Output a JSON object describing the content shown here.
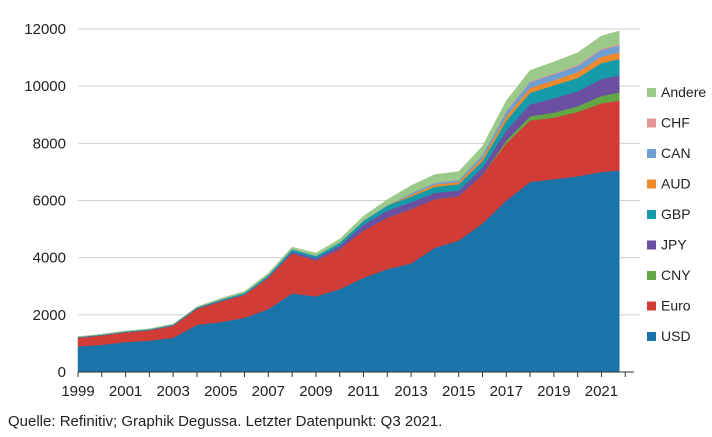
{
  "chart_data": {
    "type": "area",
    "stacked": true,
    "x": [
      1999,
      2000,
      2001,
      2002,
      2003,
      2004,
      2005,
      2006,
      2007,
      2008,
      2009,
      2010,
      2011,
      2012,
      2013,
      2014,
      2015,
      2016,
      2017,
      2018,
      2019,
      2020,
      2021,
      2021.75
    ],
    "x_ticks": [
      1999,
      2001,
      2003,
      2005,
      2007,
      2009,
      2011,
      2013,
      2015,
      2017,
      2019,
      2021
    ],
    "ylim": [
      0,
      12000
    ],
    "y_ticks": [
      0,
      2000,
      4000,
      6000,
      8000,
      10000,
      12000
    ],
    "grid": "horizontal",
    "legend_position": "right",
    "series": [
      {
        "name": "USD",
        "color": "#1a74a8",
        "values": [
          900,
          950,
          1050,
          1100,
          1200,
          1650,
          1750,
          1900,
          2200,
          2750,
          2650,
          2900,
          3300,
          3600,
          3800,
          4350,
          4600,
          5200,
          6000,
          6650,
          6750,
          6850,
          7000,
          7050
        ]
      },
      {
        "name": "Euro",
        "color": "#d23c36",
        "values": [
          300,
          330,
          340,
          360,
          420,
          560,
          720,
          800,
          1100,
          1400,
          1250,
          1400,
          1650,
          1800,
          1900,
          1700,
          1550,
          1700,
          2000,
          2150,
          2150,
          2250,
          2400,
          2450
        ]
      },
      {
        "name": "CNY",
        "color": "#62a744",
        "values": [
          0,
          0,
          0,
          0,
          0,
          0,
          0,
          0,
          0,
          0,
          0,
          0,
          0,
          0,
          0,
          0,
          0,
          0,
          100,
          150,
          180,
          200,
          260,
          280
        ]
      },
      {
        "name": "JPY",
        "color": "#6b4fa0",
        "values": [
          10,
          12,
          12,
          15,
          15,
          20,
          20,
          20,
          25,
          60,
          80,
          120,
          200,
          250,
          240,
          220,
          200,
          250,
          350,
          420,
          500,
          520,
          590,
          600
        ]
      },
      {
        "name": "GBP",
        "color": "#159aaa",
        "values": [
          20,
          22,
          22,
          25,
          30,
          35,
          45,
          55,
          70,
          90,
          90,
          110,
          150,
          180,
          200,
          210,
          220,
          230,
          350,
          400,
          450,
          470,
          560,
          570
        ]
      },
      {
        "name": "AUD",
        "color": "#ee8a2c",
        "values": [
          0,
          0,
          0,
          0,
          0,
          0,
          0,
          0,
          0,
          0,
          0,
          0,
          0,
          0,
          60,
          80,
          80,
          110,
          150,
          170,
          180,
          200,
          220,
          230
        ]
      },
      {
        "name": "CAN",
        "color": "#6f9fd1",
        "values": [
          0,
          0,
          0,
          0,
          0,
          0,
          0,
          0,
          0,
          0,
          0,
          0,
          0,
          0,
          60,
          60,
          70,
          110,
          170,
          200,
          210,
          220,
          240,
          250
        ]
      },
      {
        "name": "CHF",
        "color": "#e29595",
        "values": [
          0,
          0,
          0,
          0,
          0,
          0,
          0,
          0,
          0,
          0,
          0,
          0,
          0,
          0,
          0,
          0,
          0,
          0,
          20,
          30,
          30,
          40,
          40,
          40
        ]
      },
      {
        "name": "Andere",
        "color": "#9bc98a",
        "values": [
          10,
          10,
          10,
          10,
          15,
          20,
          40,
          50,
          60,
          70,
          90,
          120,
          150,
          200,
          260,
          290,
          290,
          300,
          350,
          380,
          400,
          420,
          450,
          460
        ]
      }
    ]
  },
  "source_text": "Quelle: Refinitiv; Graphik Degussa. Letzter Datenpunkt: Q3 2021."
}
